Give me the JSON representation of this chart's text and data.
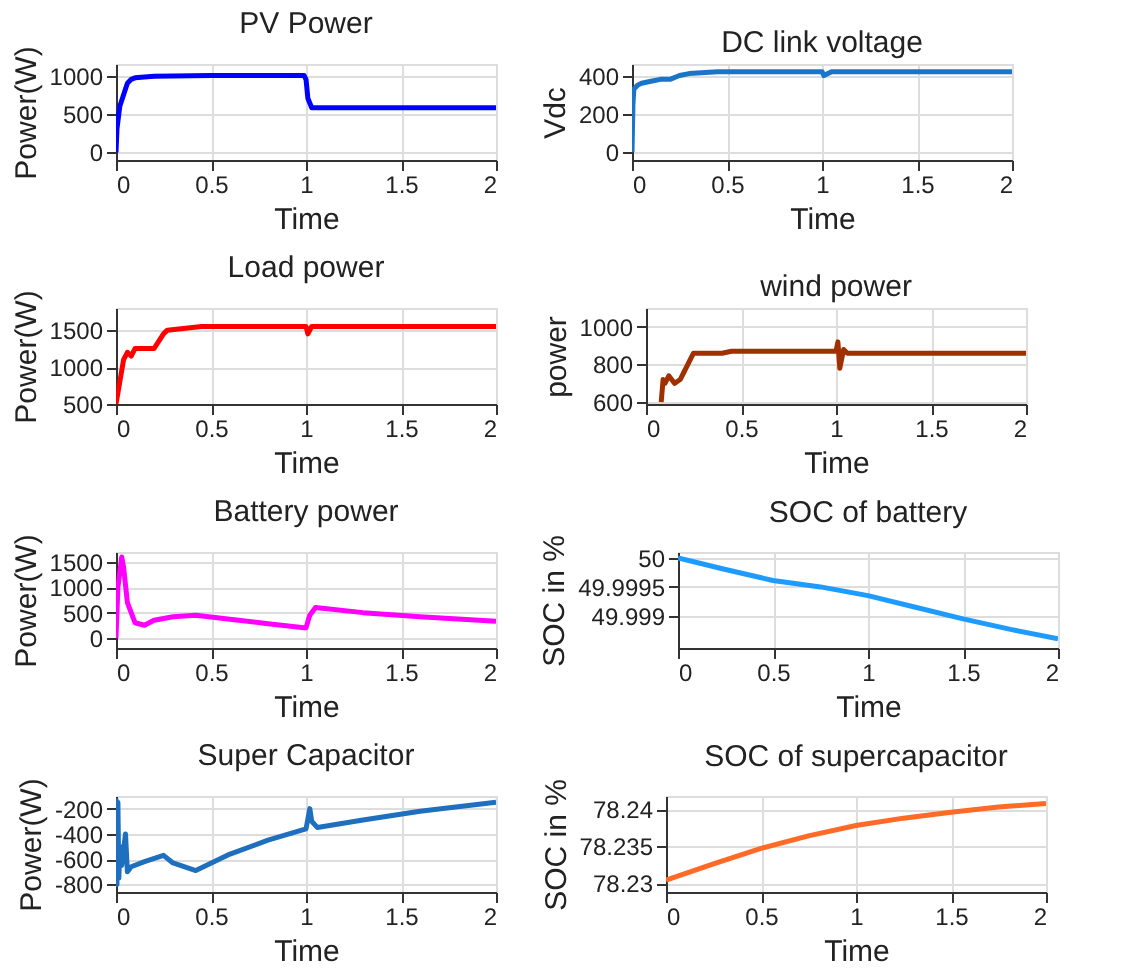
{
  "chart_data": [
    {
      "type": "line",
      "title": "PV Power",
      "xlabel": "Time",
      "ylabel": "Power(W)",
      "xlim": [
        0,
        2
      ],
      "xticks": [
        0,
        0.5,
        1,
        1.5,
        2
      ],
      "ylim": [
        -100,
        1150
      ],
      "yticks": [
        0,
        500,
        1000
      ],
      "grid": true,
      "series": [
        {
          "color": "#0000ff",
          "x": [
            0,
            0.005,
            0.02,
            0.04,
            0.06,
            0.08,
            0.1,
            0.15,
            0.2,
            0.5,
            0.99,
            1.0,
            1.01,
            1.03,
            1.5,
            2
          ],
          "values": [
            0,
            300,
            600,
            750,
            900,
            950,
            970,
            980,
            990,
            1000,
            1000,
            950,
            700,
            580,
            580,
            580
          ]
        }
      ]
    },
    {
      "type": "line",
      "title": "DC link voltage",
      "xlabel": "Time",
      "ylabel": "Vdc",
      "xlim": [
        0,
        2
      ],
      "xticks": [
        0,
        0.5,
        1,
        1.5,
        2
      ],
      "ylim": [
        -40,
        460
      ],
      "yticks": [
        0,
        200,
        400
      ],
      "grid": true,
      "series": [
        {
          "color": "#1a75c9",
          "x": [
            0,
            0.005,
            0.01,
            0.03,
            0.05,
            0.1,
            0.15,
            0.2,
            0.25,
            0.3,
            0.45,
            1.0,
            1.01,
            1.05,
            2
          ],
          "values": [
            0,
            250,
            330,
            350,
            360,
            370,
            380,
            380,
            400,
            410,
            420,
            420,
            400,
            420,
            420
          ]
        }
      ]
    },
    {
      "type": "line",
      "title": "Load power",
      "xlabel": "Time",
      "ylabel": "Power(W)",
      "xlim": [
        0,
        2
      ],
      "xticks": [
        0,
        0.5,
        1,
        1.5,
        2
      ],
      "ylim": [
        500,
        1800
      ],
      "yticks": [
        500,
        1000,
        1500
      ],
      "grid": true,
      "series": [
        {
          "color": "#ff0000",
          "x": [
            0,
            0.02,
            0.04,
            0.06,
            0.08,
            0.1,
            0.15,
            0.2,
            0.25,
            0.27,
            0.45,
            1.0,
            1.01,
            1.03,
            1.05,
            2
          ],
          "values": [
            500,
            800,
            1100,
            1200,
            1150,
            1250,
            1250,
            1250,
            1450,
            1500,
            1550,
            1550,
            1450,
            1550,
            1550,
            1550
          ]
        }
      ]
    },
    {
      "type": "line",
      "title": "wind power",
      "xlabel": "Time",
      "ylabel": "power",
      "xlim": [
        0,
        2
      ],
      "xticks": [
        0,
        0.5,
        1,
        1.5,
        2
      ],
      "ylim": [
        590,
        1100
      ],
      "yticks": [
        600,
        800,
        1000
      ],
      "grid": true,
      "series": [
        {
          "color": "#a03000",
          "x": [
            0.08,
            0.09,
            0.1,
            0.12,
            0.15,
            0.18,
            0.2,
            0.25,
            0.28,
            0.4,
            0.45,
            1.0,
            1.01,
            1.02,
            1.04,
            1.06,
            2
          ],
          "values": [
            600,
            720,
            700,
            740,
            700,
            720,
            760,
            860,
            860,
            860,
            870,
            870,
            920,
            780,
            880,
            860,
            860
          ]
        }
      ]
    },
    {
      "type": "line",
      "title": "Battery power",
      "xlabel": "Time",
      "ylabel": "Power(W)",
      "xlim": [
        0,
        2
      ],
      "xticks": [
        0,
        0.5,
        1,
        1.5,
        2
      ],
      "ylim": [
        -200,
        1700
      ],
      "yticks": [
        0,
        500,
        1000,
        1500
      ],
      "grid": true,
      "series": [
        {
          "color": "#ff00ff",
          "x": [
            0,
            0.01,
            0.03,
            0.04,
            0.06,
            0.1,
            0.15,
            0.2,
            0.3,
            0.42,
            0.6,
            0.8,
            0.99,
            1.0,
            1.02,
            1.05,
            1.3,
            1.6,
            2
          ],
          "values": [
            0,
            1000,
            1600,
            1400,
            700,
            300,
            250,
            350,
            420,
            450,
            370,
            280,
            200,
            200,
            450,
            600,
            500,
            420,
            330
          ]
        }
      ]
    },
    {
      "type": "line",
      "title": "SOC of battery",
      "xlabel": "Time",
      "ylabel": "SOC in %",
      "xlim": [
        0,
        2
      ],
      "xticks": [
        0,
        0.5,
        1,
        1.5,
        2
      ],
      "ylim": [
        49.99845,
        50.0001
      ],
      "yticks": [
        49.999,
        49.9995,
        50
      ],
      "grid": true,
      "series": [
        {
          "color": "#1e9bff",
          "x": [
            0,
            0.25,
            0.5,
            0.75,
            1.0,
            1.25,
            1.5,
            1.75,
            2
          ],
          "values": [
            50.0,
            49.9998,
            49.99961,
            49.9995,
            49.99935,
            49.99915,
            49.99895,
            49.99877,
            49.99861
          ]
        }
      ]
    },
    {
      "type": "line",
      "title": "Super Capacitor",
      "xlabel": "Time",
      "ylabel": "Power(W)",
      "xlim": [
        0,
        2
      ],
      "xticks": [
        0,
        0.5,
        1,
        1.5,
        2
      ],
      "ylim": [
        -860,
        -100
      ],
      "yticks": [
        -800,
        -600,
        -400,
        -200
      ],
      "grid": true,
      "series": [
        {
          "color": "#1f6fbf",
          "x": [
            0,
            0.005,
            0.01,
            0.015,
            0.02,
            0.03,
            0.05,
            0.06,
            0.08,
            0.15,
            0.25,
            0.3,
            0.42,
            0.6,
            0.8,
            1.0,
            1.02,
            1.03,
            1.06,
            1.3,
            1.6,
            2
          ],
          "values": [
            -120,
            -800,
            -150,
            -750,
            -500,
            -650,
            -400,
            -700,
            -660,
            -620,
            -570,
            -630,
            -690,
            -560,
            -450,
            -360,
            -200,
            -300,
            -350,
            -290,
            -220,
            -150
          ]
        }
      ]
    },
    {
      "type": "line",
      "title": "SOC of supercapacitor",
      "xlabel": "Time",
      "ylabel": "SOC in %",
      "xlim": [
        0,
        2
      ],
      "xticks": [
        0,
        0.5,
        1,
        1.5,
        2
      ],
      "ylim": [
        78.2288,
        78.2418
      ],
      "yticks": [
        78.23,
        78.235,
        78.24
      ],
      "grid": true,
      "series": [
        {
          "color": "#ff6a26",
          "x": [
            0,
            0.25,
            0.5,
            0.75,
            1.0,
            1.25,
            1.5,
            1.75,
            2
          ],
          "values": [
            78.2304,
            78.2326,
            78.2347,
            78.2364,
            78.2378,
            78.2388,
            78.2396,
            78.2403,
            78.2408
          ]
        }
      ]
    }
  ]
}
